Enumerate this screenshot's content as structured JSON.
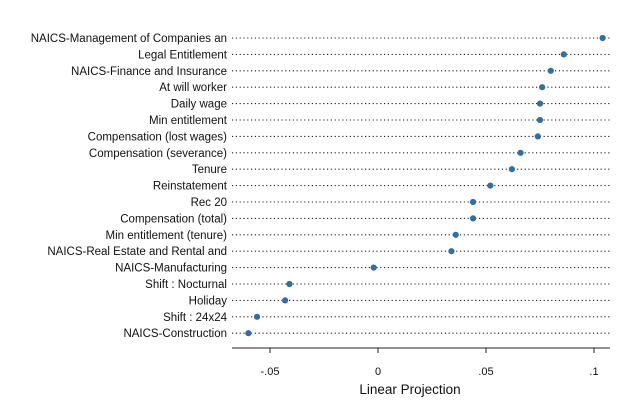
{
  "chart_data": {
    "type": "scatter",
    "xlabel": "Linear Projection",
    "xlim": [
      -0.07,
      0.108
    ],
    "xticks": [
      -0.05,
      0,
      0.05,
      0.1
    ],
    "xtick_labels": [
      "-.05",
      "0",
      ".05",
      ".1"
    ],
    "grid": "dotted horizontal guide lines per row",
    "colors": {
      "points": "#2f6fa3"
    },
    "points": [
      {
        "label": "NAICS-Management of Companies an",
        "value": 0.104
      },
      {
        "label": "Legal Entitlement",
        "value": 0.086
      },
      {
        "label": "NAICS-Finance and Insurance",
        "value": 0.08
      },
      {
        "label": "At will worker",
        "value": 0.076
      },
      {
        "label": "Daily wage",
        "value": 0.075
      },
      {
        "label": "Min entitlement",
        "value": 0.075
      },
      {
        "label": "Compensation (lost wages)",
        "value": 0.074
      },
      {
        "label": "Compensation (severance)",
        "value": 0.066
      },
      {
        "label": "Tenure",
        "value": 0.062
      },
      {
        "label": "Reinstatement",
        "value": 0.052
      },
      {
        "label": "Rec 20",
        "value": 0.044
      },
      {
        "label": "Compensation (total)",
        "value": 0.044
      },
      {
        "label": "Min entitlement (tenure)",
        "value": 0.036
      },
      {
        "label": "NAICS-Real Estate and Rental and",
        "value": 0.034
      },
      {
        "label": "NAICS-Manufacturing",
        "value": -0.002
      },
      {
        "label": "Shift : Nocturnal",
        "value": -0.041
      },
      {
        "label": "Holiday",
        "value": -0.043
      },
      {
        "label": "Shift : 24x24",
        "value": -0.056
      },
      {
        "label": "NAICS-Construction",
        "value": -0.06
      }
    ]
  }
}
